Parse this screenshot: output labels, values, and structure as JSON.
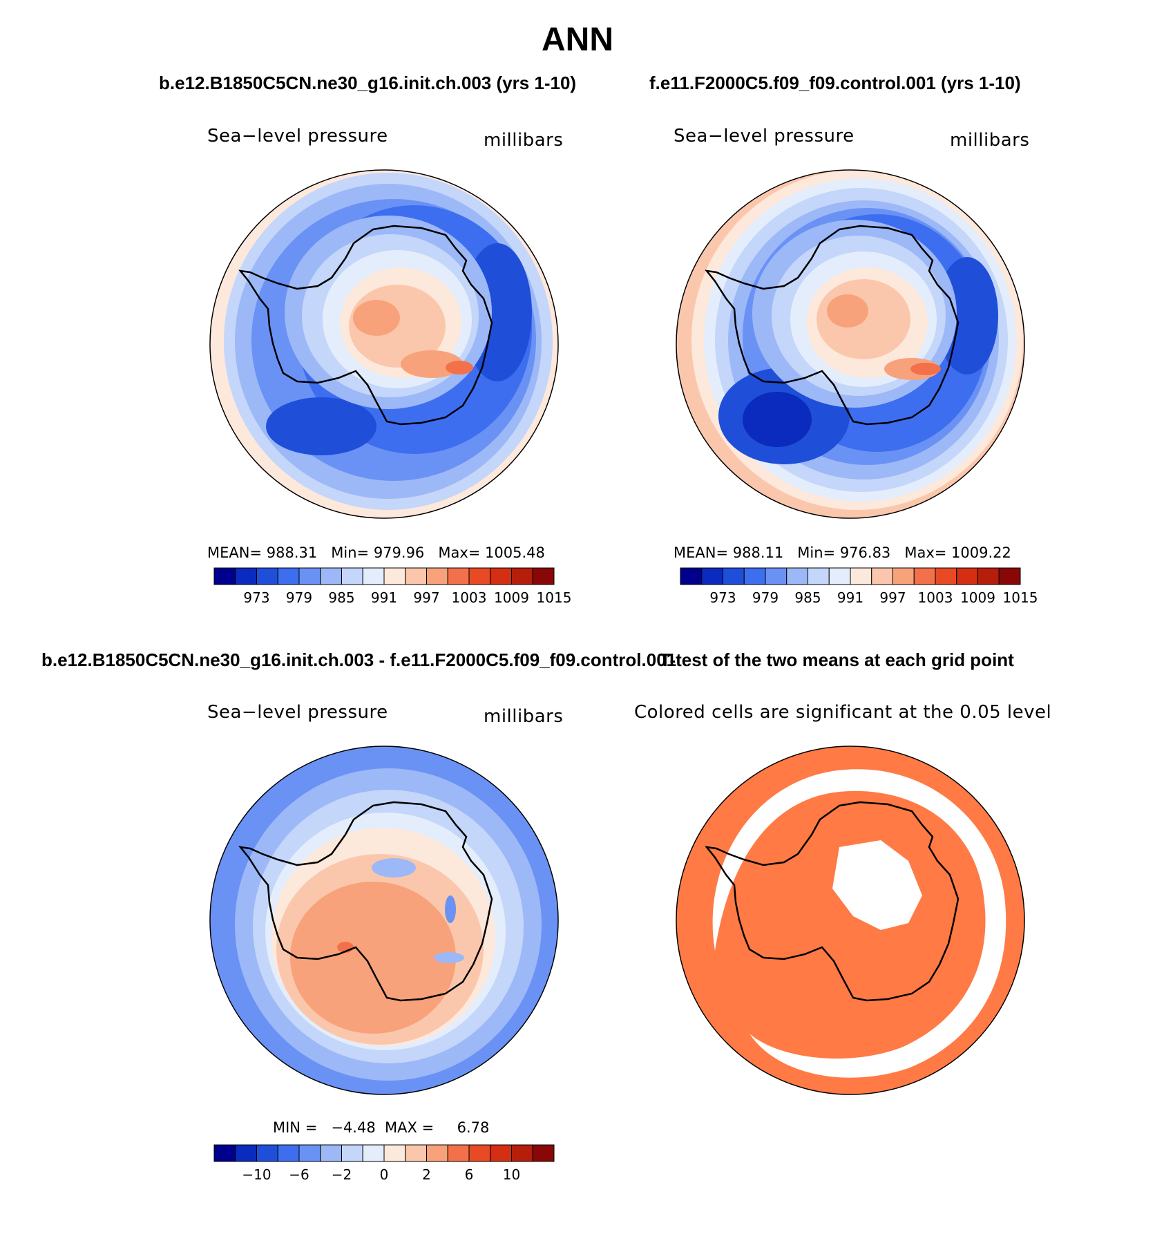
{
  "title": "ANN",
  "panels": {
    "top_left": {
      "case_title": "b.e12.B1850C5CN.ne30_g16.init.ch.003 (yrs 1-10)",
      "variable": "Sea−level pressure",
      "units": "millibars",
      "stats": {
        "mean_label": "MEAN=",
        "mean": "988.31",
        "min_label": "Min=",
        "min": "979.96",
        "max_label": "Max=",
        "max": "1005.48"
      }
    },
    "top_right": {
      "case_title": "f.e11.F2000C5.f09_f09.control.001 (yrs 1-10)",
      "variable": "Sea−level pressure",
      "units": "millibars",
      "stats": {
        "mean_label": "MEAN=",
        "mean": "988.11",
        "min_label": "Min=",
        "min": "976.83",
        "max_label": "Max=",
        "max": "1009.22"
      }
    },
    "bottom_left": {
      "case_title": "b.e12.B1850C5CN.ne30_g16.init.ch.003 - f.e11.F2000C5.f09_f09.control.001",
      "variable": "Sea−level pressure",
      "units": "millibars",
      "stats": {
        "min_label": "MIN =",
        "min": "−4.48",
        "max_label": "MAX =",
        "max": "6.78"
      }
    },
    "bottom_right": {
      "case_title": "T-test of the two means at each grid point",
      "subtitle": "Colored cells are significant at the 0.05 level"
    }
  },
  "colorbar_abs": {
    "labels": [
      "973",
      "979",
      "985",
      "991",
      "997",
      "1003",
      "1009",
      "1015"
    ]
  },
  "colorbar_diff": {
    "labels": [
      "−10",
      "−6",
      "−2",
      "0",
      "2",
      "6",
      "10"
    ]
  },
  "colors": {
    "bins": [
      "#00008c",
      "#0a2bbd",
      "#1f4fd9",
      "#3d6ef0",
      "#6a92f5",
      "#9cb8f7",
      "#c4d6f9",
      "#e4edfb",
      "#fde8dc",
      "#fbc7ac",
      "#f8a27b",
      "#f2714a",
      "#e84a24",
      "#d42f12",
      "#b41e0b",
      "#8a0707"
    ],
    "significant": "#ff7a45"
  },
  "chart_data": [
    {
      "type": "heatmap",
      "projection": "south-polar-stereographic",
      "title": "b.e12.B1850C5CN.ne30_g16.init.ch.003 (yrs 1-10)",
      "variable": "Sea-level pressure",
      "units": "millibars",
      "mean": 988.31,
      "min": 979.96,
      "max": 1005.48,
      "contour_levels": [
        973,
        976,
        979,
        982,
        985,
        988,
        991,
        994,
        997,
        1000,
        1003,
        1006,
        1009,
        1012,
        1015
      ]
    },
    {
      "type": "heatmap",
      "projection": "south-polar-stereographic",
      "title": "f.e11.F2000C5.f09_f09.control.001 (yrs 1-10)",
      "variable": "Sea-level pressure",
      "units": "millibars",
      "mean": 988.11,
      "min": 976.83,
      "max": 1009.22,
      "contour_levels": [
        973,
        976,
        979,
        982,
        985,
        988,
        991,
        994,
        997,
        1000,
        1003,
        1006,
        1009,
        1012,
        1015
      ]
    },
    {
      "type": "heatmap",
      "projection": "south-polar-stereographic",
      "title": "b.e12.B1850C5CN.ne30_g16.init.ch.003 - f.e11.F2000C5.f09_f09.control.001",
      "variable": "Sea-level pressure",
      "units": "millibars",
      "min": -4.48,
      "max": 6.78,
      "contour_levels": [
        -12,
        -10,
        -8,
        -6,
        -4,
        -2,
        -1,
        0,
        1,
        2,
        4,
        6,
        8,
        10,
        12
      ]
    },
    {
      "type": "heatmap",
      "projection": "south-polar-stereographic",
      "title": "T-test of the two means at each grid point",
      "note": "Colored cells are significant at the 0.05 level",
      "significance_level": 0.05
    }
  ]
}
